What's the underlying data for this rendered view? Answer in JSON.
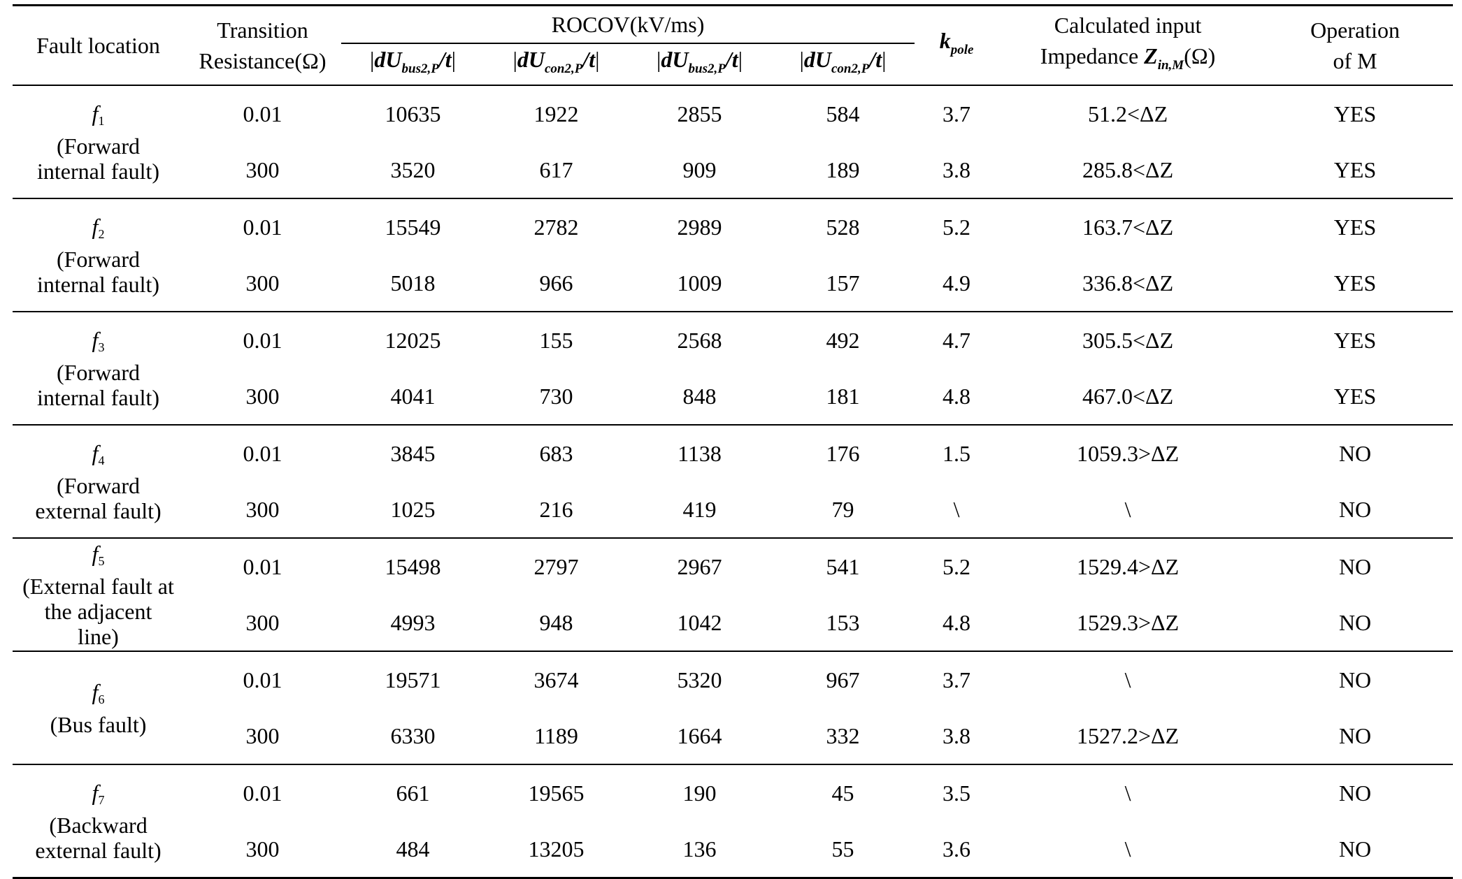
{
  "header": {
    "fault_location": "Fault location",
    "transition_resistance_line1": "Transition",
    "transition_resistance_line2": "Resistance(Ω)",
    "rocov": "ROCOV(kV/ms)",
    "col1_main": "dU",
    "col1_sub": "bus2,P",
    "col2_main": "dU",
    "col2_sub": "con2,P",
    "col3_main": "dU",
    "col3_sub": "bus2,P",
    "col4_main": "dU",
    "col4_sub": "con2,P",
    "col_t": "/t",
    "kpole_main": "k",
    "kpole_sub": "pole",
    "impedance_line1": "Calculated input",
    "impedance_line2_a": "Impedance ",
    "impedance_line2_sym": "Z",
    "impedance_line2_sub": "in,M",
    "impedance_line2_b": "(Ω)",
    "operation_line1": "Operation",
    "operation_line2": "of M"
  },
  "groups": [
    {
      "label_sym": "f",
      "label_sub": "1",
      "label_desc": "(Forward internal fault)",
      "rows": [
        [
          "0.01",
          "10635",
          "1922",
          "2855",
          "584",
          "3.7",
          "51.2<ΔZ",
          "YES"
        ],
        [
          "300",
          "3520",
          "617",
          "909",
          "189",
          "3.8",
          "285.8<ΔZ",
          "YES"
        ]
      ]
    },
    {
      "label_sym": "f",
      "label_sub": "2",
      "label_desc": "(Forward internal fault)",
      "rows": [
        [
          "0.01",
          "15549",
          "2782",
          "2989",
          "528",
          "5.2",
          "163.7<ΔZ",
          "YES"
        ],
        [
          "300",
          "5018",
          "966",
          "1009",
          "157",
          "4.9",
          "336.8<ΔZ",
          "YES"
        ]
      ]
    },
    {
      "label_sym": "f",
      "label_sub": "3",
      "label_desc": "(Forward internal fault)",
      "rows": [
        [
          "0.01",
          "12025",
          "155",
          "2568",
          "492",
          "4.7",
          "305.5<ΔZ",
          "YES"
        ],
        [
          "300",
          "4041",
          "730",
          "848",
          "181",
          "4.8",
          "467.0<ΔZ",
          "YES"
        ]
      ]
    },
    {
      "label_sym": "f",
      "label_sub": "4",
      "label_desc": "(Forward external fault)",
      "rows": [
        [
          "0.01",
          "3845",
          "683",
          "1138",
          "176",
          "1.5",
          "1059.3>ΔZ",
          "NO"
        ],
        [
          "300",
          "1025",
          "216",
          "419",
          "79",
          "\\",
          "\\",
          "NO"
        ]
      ]
    },
    {
      "label_sym": "f",
      "label_sub": "5",
      "label_desc": "(External fault at the adjacent line)",
      "rows": [
        [
          "0.01",
          "15498",
          "2797",
          "2967",
          "541",
          "5.2",
          "1529.4>ΔZ",
          "NO"
        ],
        [
          "300",
          "4993",
          "948",
          "1042",
          "153",
          "4.8",
          "1529.3>ΔZ",
          "NO"
        ]
      ]
    },
    {
      "label_sym": "f",
      "label_sub": "6",
      "label_desc": "(Bus fault)",
      "rows": [
        [
          "0.01",
          "19571",
          "3674",
          "5320",
          "967",
          "3.7",
          "\\",
          "NO"
        ],
        [
          "300",
          "6330",
          "1189",
          "1664",
          "332",
          "3.8",
          "1527.2>ΔZ",
          "NO"
        ]
      ]
    },
    {
      "label_sym": "f",
      "label_sub": "7",
      "label_desc": "(Backward external fault)",
      "rows": [
        [
          "0.01",
          "661",
          "19565",
          "190",
          "45",
          "3.5",
          "\\",
          "NO"
        ],
        [
          "300",
          "484",
          "13205",
          "136",
          "55",
          "3.6",
          "\\",
          "NO"
        ]
      ]
    }
  ]
}
